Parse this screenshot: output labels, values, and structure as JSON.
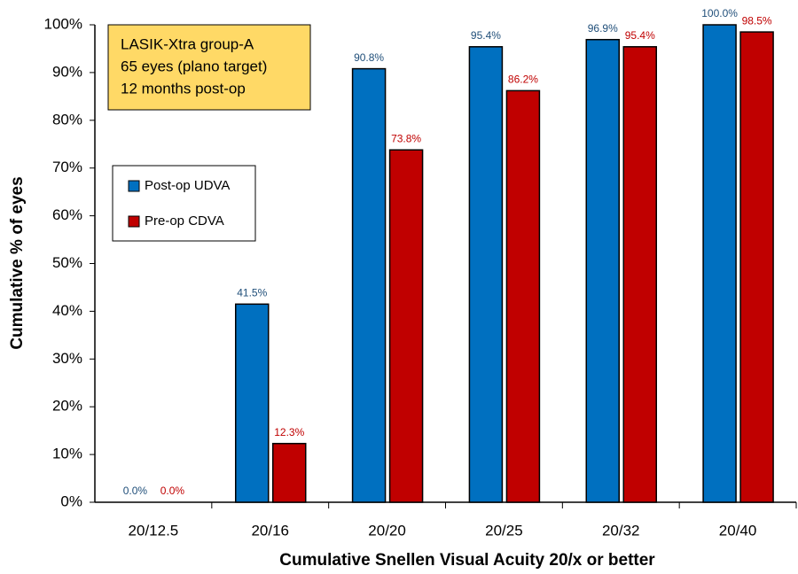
{
  "chart_data": {
    "type": "bar",
    "categories": [
      "20/12.5",
      "20/16",
      "20/20",
      "20/25",
      "20/32",
      "20/40"
    ],
    "series": [
      {
        "name": "Post-op UDVA",
        "color": "#0070c0",
        "label_color": "#1f4e79",
        "values": [
          0,
          41.5,
          90.8,
          95.4,
          96.9,
          100
        ],
        "value_labels": [
          "0.0%",
          "41.5%",
          "90.8%",
          "95.4%",
          "96.9%",
          "100.0%"
        ]
      },
      {
        "name": "Pre-op CDVA",
        "color": "#c00000",
        "label_color": "#c00000",
        "values": [
          0,
          12.3,
          73.8,
          86.2,
          95.4,
          98.5
        ],
        "value_labels": [
          "0.0%",
          "12.3%",
          "73.8%",
          "86.2%",
          "95.4%",
          "98.5%"
        ]
      }
    ],
    "ylim": [
      0,
      100
    ],
    "yticks": [
      {
        "value": 0,
        "label": "0%"
      },
      {
        "value": 10,
        "label": "10%"
      },
      {
        "value": 20,
        "label": "20%"
      },
      {
        "value": 30,
        "label": "30%"
      },
      {
        "value": 40,
        "label": "40%"
      },
      {
        "value": 50,
        "label": "50%"
      },
      {
        "value": 60,
        "label": "60%"
      },
      {
        "value": 70,
        "label": "70%"
      },
      {
        "value": 80,
        "label": "80%"
      },
      {
        "value": 90,
        "label": "90%"
      },
      {
        "value": 100,
        "label": "100%"
      }
    ],
    "x_label": "Cumulative Snellen Visual Acuity 20/x or better",
    "y_label": "Cumulative % of eyes",
    "annotation": [
      "LASIK-Xtra group-A",
      "65 eyes (plano target)",
      "12 months post-op"
    ],
    "grid": false
  }
}
